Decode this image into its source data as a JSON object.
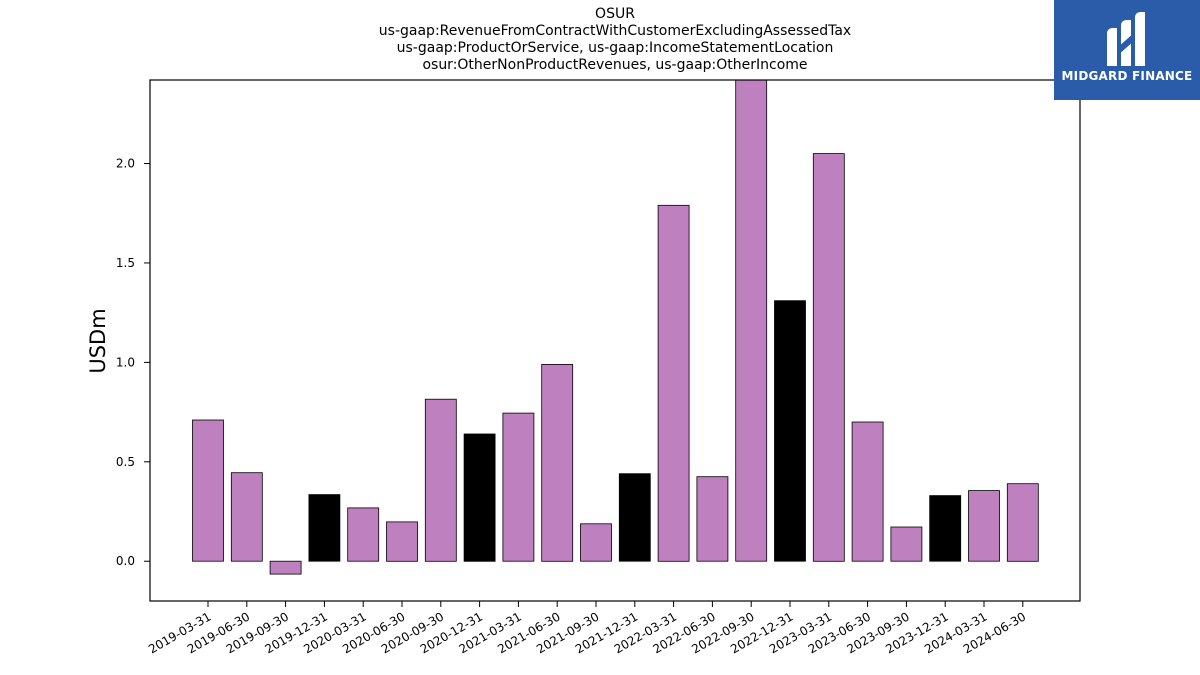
{
  "title_lines": [
    "OSUR",
    "us-gaap:RevenueFromContractWithCustomerExcludingAssessedTax",
    "us-gaap:ProductOrService, us-gaap:IncomeStatementLocation",
    "osur:OtherNonProductRevenues, us-gaap:OtherIncome"
  ],
  "logo": {
    "text": "MIDGARD FINANCE",
    "background": "#2a5caa"
  },
  "chart_data": {
    "type": "bar",
    "ylabel": "USDm",
    "xlabel": "",
    "ylim": [
      -0.2,
      2.42
    ],
    "yticks": [
      0.0,
      0.5,
      1.0,
      1.5,
      2.0
    ],
    "ytick_labels": [
      "0.0",
      "0.5",
      "1.0",
      "1.5",
      "2.0"
    ],
    "grid": false,
    "colors": {
      "quarter": "#bf80bf",
      "year_end": "#000000",
      "edge": "#000000"
    },
    "categories": [
      "2019-03-31",
      "2019-06-30",
      "2019-09-30",
      "2019-12-31",
      "2020-03-31",
      "2020-06-30",
      "2020-09-30",
      "2020-12-31",
      "2021-03-31",
      "2021-06-30",
      "2021-09-30",
      "2021-12-31",
      "2022-03-31",
      "2022-06-30",
      "2022-09-30",
      "2022-12-31",
      "2023-03-31",
      "2023-06-30",
      "2023-09-30",
      "2023-12-31",
      "2024-03-31",
      "2024-06-30"
    ],
    "values": [
      0.71,
      0.445,
      -0.065,
      0.335,
      0.268,
      0.198,
      0.815,
      0.64,
      0.745,
      0.99,
      0.188,
      0.44,
      1.79,
      0.425,
      2.42,
      1.31,
      2.05,
      0.7,
      0.172,
      0.33,
      0.355,
      0.39
    ],
    "year_end": [
      false,
      false,
      false,
      true,
      false,
      false,
      false,
      true,
      false,
      false,
      false,
      true,
      false,
      false,
      false,
      true,
      false,
      false,
      false,
      true,
      false,
      false
    ]
  }
}
